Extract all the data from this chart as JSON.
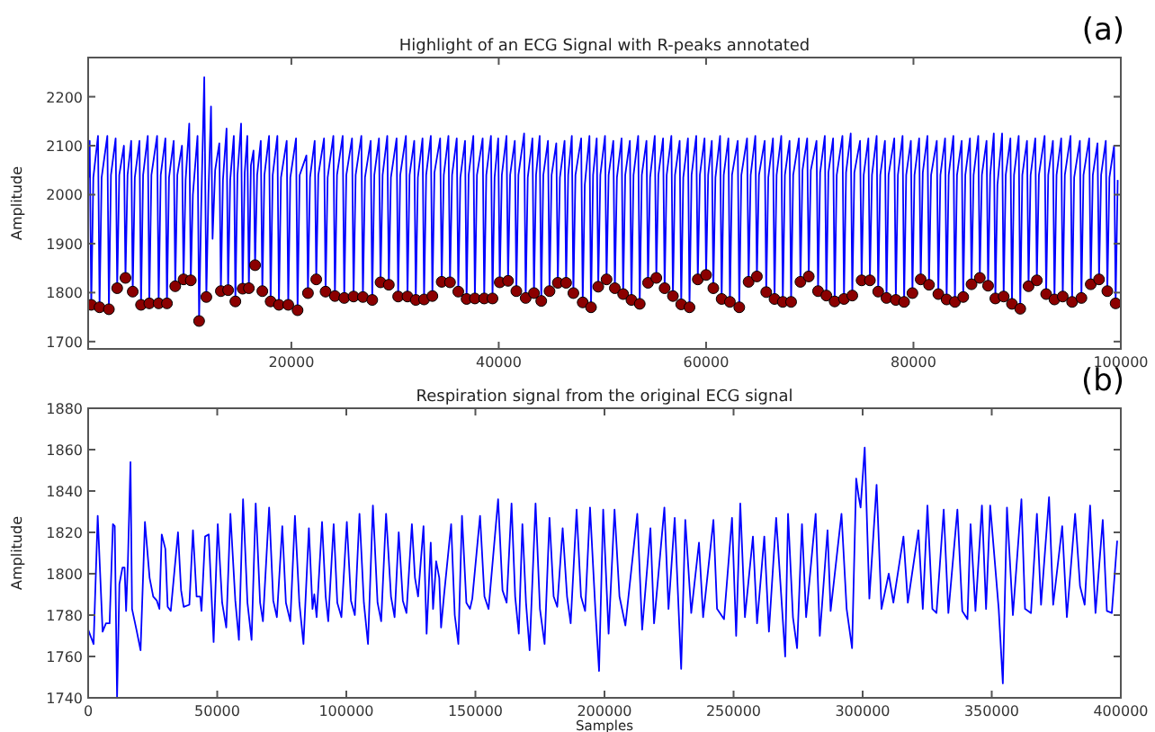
{
  "chart_data": [
    {
      "type": "line",
      "title": "Highlight of an ECG Signal with R-peaks annotated",
      "ylabel": "Amplitude",
      "annotations": [
        "(a)"
      ],
      "xlim": [
        400,
        100000
      ],
      "xticks": [
        20000,
        40000,
        60000,
        80000,
        100000
      ],
      "ylim": [
        1685,
        2280
      ],
      "yticks": [
        1700,
        1800,
        1900,
        2000,
        2100,
        2200
      ],
      "series": [
        {
          "color": "#0000ff",
          "line_style": "solid",
          "x": [
            450,
            550,
            700,
            900,
            1350,
            1500,
            1700,
            2250,
            2400,
            2600,
            3050,
            3200,
            3400,
            3850,
            4000,
            4200,
            4550,
            4700,
            4900,
            5350,
            5500,
            5700,
            6150,
            6300,
            6500,
            7050,
            7200,
            7400,
            7850,
            8000,
            8200,
            8650,
            8800,
            9000,
            9450,
            9600,
            9800,
            10150,
            10300,
            10500,
            10950,
            11100,
            11300,
            11600,
            11800,
            12000,
            12250,
            12400,
            12650,
            13050,
            13200,
            13400,
            13750,
            13900,
            14100,
            14450,
            14600,
            14800,
            15150,
            15300,
            15500,
            15750,
            15900,
            16100,
            16350,
            16500,
            16700,
            17050,
            17200,
            17400,
            17850,
            18000,
            18200,
            18650,
            18800,
            19000,
            19550,
            19700,
            19900,
            20450,
            20600,
            20800,
            21450,
            21600,
            21800,
            22250,
            22400,
            22600,
            23150,
            23300,
            23500,
            24050,
            24200,
            24400,
            24950,
            25100,
            25300,
            25850,
            26000,
            26200,
            26750,
            26900,
            27100,
            27650,
            27800,
            28000,
            28450,
            28600,
            28800,
            29250,
            29400,
            29600,
            30150,
            30300,
            30500,
            31050,
            31200,
            31400,
            31850,
            32000,
            32200,
            32650,
            32800,
            33000,
            33450,
            33600,
            33800,
            34350,
            34500,
            34700,
            35150,
            35300,
            35500,
            35950,
            36100,
            36300,
            36750,
            36900,
            37100,
            37550,
            37700,
            37900,
            38450,
            38600,
            38800,
            39250,
            39400,
            39600,
            39950,
            40100,
            40300,
            40750,
            40900,
            41100,
            41550,
            41700,
            41900,
            42450,
            42600,
            42800,
            43250,
            43400,
            43600,
            43950,
            44100,
            44300,
            44750,
            44900,
            45100,
            45550,
            45700,
            45900,
            46350,
            46500,
            46700,
            47050,
            47200,
            47400,
            47950,
            48100,
            48300,
            48750,
            48900,
            49100,
            49450,
            49600,
            49800,
            50250,
            50400,
            50600,
            51050,
            51200,
            51400,
            51850,
            52000,
            52200,
            52650,
            52800,
            53000,
            53450,
            53600,
            53800,
            54250,
            54400,
            54600,
            55050,
            55200,
            55400,
            55850,
            56000,
            56200,
            56650,
            56800,
            57000,
            57450,
            57600,
            57800,
            58250,
            58400,
            58600,
            59050,
            59200,
            59400,
            59850,
            60000,
            60200,
            60550,
            60700,
            60900,
            61350,
            61500,
            61700,
            62150,
            62300,
            62500,
            63050,
            63200,
            63400,
            63950,
            64100,
            64300,
            64750,
            64900,
            65100,
            65650,
            65800,
            66000,
            66450,
            66600,
            66800,
            67250,
            67400,
            67600,
            68050,
            68200,
            68400,
            68950,
            69100,
            69300,
            69750,
            69900,
            70100,
            70650,
            70800,
            71000,
            71450,
            71600,
            71800,
            72250,
            72400,
            72600,
            73150,
            73300,
            73500,
            73950,
            74100,
            74300,
            74850,
            75000,
            75200,
            75650,
            75800,
            76000,
            76450,
            76600,
            76800,
            77250,
            77400,
            77600,
            78150,
            78300,
            78500,
            78950,
            79100,
            79300,
            79750,
            79900,
            80100,
            80550,
            80700,
            80900,
            81350,
            81500,
            81700,
            82250,
            82400,
            82600,
            83050,
            83200,
            83400,
            83850,
            84000,
            84200,
            84650,
            84800,
            85000,
            85450,
            85600,
            85800,
            86250,
            86400,
            86600,
            87050,
            87200,
            87400,
            87750,
            87900,
            88100,
            88550,
            88700,
            88900,
            89350,
            89500,
            89700,
            90150,
            90300,
            90500,
            90950,
            91100,
            91300,
            91750,
            91900,
            92100,
            92650,
            92800,
            93000,
            93450,
            93600,
            93800,
            94250,
            94400,
            94600,
            95150,
            95300,
            95500,
            96050,
            96200,
            96400,
            96950,
            97100,
            97300,
            97750,
            97900,
            98100,
            98550,
            98700,
            98900,
            99350,
            99500,
            99700
          ],
          "values": [
            2035,
            2110,
            1775,
            2035,
            2120,
            1770,
            2035,
            2120,
            1766,
            2040,
            2115,
            1809,
            2040,
            2100,
            1830,
            2040,
            2110,
            1802,
            2035,
            2110,
            1775,
            2040,
            2120,
            1778,
            2040,
            2120,
            1778,
            2040,
            2115,
            1778,
            2035,
            2110,
            1813,
            2040,
            2100,
            1827,
            2030,
            2145,
            1825,
            2000,
            2120,
            1742,
            1970,
            2240,
            1791,
            2000,
            2180,
            1910,
            2050,
            2105,
            1803,
            2030,
            2135,
            1805,
            2030,
            2120,
            1782,
            2040,
            2145,
            1808,
            2045,
            2120,
            1809,
            2060,
            2090,
            1856,
            2040,
            2110,
            1803,
            2040,
            2120,
            1782,
            2040,
            2120,
            1775,
            2035,
            2110,
            1775,
            2035,
            2115,
            1764,
            2040,
            2080,
            1799,
            2035,
            2110,
            1827,
            2040,
            2115,
            1802,
            2035,
            2120,
            1793,
            2040,
            2120,
            1789,
            2040,
            2115,
            1792,
            2040,
            2120,
            1791,
            2035,
            2110,
            1785,
            2040,
            2115,
            1821,
            2040,
            2120,
            1816,
            2035,
            2115,
            1792,
            2040,
            2120,
            1792,
            2040,
            2110,
            1785,
            2035,
            2115,
            1786,
            2040,
            2120,
            1793,
            2045,
            2115,
            1822,
            2040,
            2120,
            1821,
            2040,
            2115,
            1802,
            2035,
            2110,
            1787,
            2040,
            2120,
            1788,
            2040,
            2115,
            1788,
            2040,
            2120,
            1788,
            2035,
            2115,
            1821,
            2040,
            2120,
            1824,
            2040,
            2110,
            1803,
            2040,
            2125,
            1789,
            2035,
            2115,
            1799,
            2040,
            2120,
            1783,
            2040,
            2110,
            1803,
            2040,
            2105,
            1820,
            2035,
            2110,
            1820,
            2040,
            2120,
            1799,
            2040,
            2115,
            1780,
            2020,
            2120,
            1770,
            2040,
            2115,
            1812,
            2040,
            2120,
            1827,
            2040,
            2110,
            1809,
            2035,
            2115,
            1797,
            2040,
            2110,
            1785,
            2040,
            2120,
            1777,
            2040,
            2110,
            1820,
            2035,
            2120,
            1830,
            2040,
            2115,
            1809,
            2040,
            2120,
            1793,
            2040,
            2110,
            1776,
            2035,
            2115,
            1770,
            2040,
            2120,
            1827,
            2040,
            2115,
            1836,
            2040,
            2110,
            1809,
            2035,
            2120,
            1787,
            2040,
            2115,
            1781,
            2040,
            2110,
            1770,
            2040,
            2115,
            1822,
            2040,
            2120,
            1833,
            2040,
            2110,
            1801,
            2035,
            2115,
            1787,
            2040,
            2120,
            1781,
            2040,
            2110,
            1781,
            2040,
            2115,
            1822,
            2050,
            2115,
            1833,
            2050,
            2110,
            1803,
            2045,
            2120,
            1794,
            2045,
            2115,
            1782,
            2040,
            2120,
            1787,
            2045,
            2125,
            1794,
            2045,
            2110,
            1825,
            2040,
            2115,
            1825,
            2040,
            2120,
            1802,
            2040,
            2110,
            1789,
            2040,
            2115,
            1785,
            2040,
            2120,
            1781,
            2040,
            2110,
            1799,
            2040,
            2115,
            1827,
            2045,
            2120,
            1816,
            2040,
            2110,
            1797,
            2040,
            2115,
            1786,
            2040,
            2120,
            1781,
            2040,
            2110,
            1791,
            2040,
            2115,
            1817,
            2040,
            2120,
            1830,
            2040,
            2110,
            1814,
            2040,
            2125,
            1788,
            2020,
            2125,
            1792,
            2040,
            2115,
            1777,
            2040,
            2120,
            1767,
            2040,
            2110,
            1813,
            2040,
            2115,
            1825,
            2040,
            2120,
            1797,
            2040,
            2110,
            1786,
            2040,
            2115,
            1792,
            2040,
            2120,
            1781,
            2035,
            2110,
            1789,
            2040,
            2115,
            1817,
            2040,
            2105,
            1827,
            2040,
            2110,
            1803,
            2035,
            2100,
            1778,
            2030
          ]
        },
        {
          "type": "scatter",
          "color": "#8b0000",
          "marker": "circle",
          "x": [
            700,
            1500,
            2400,
            3200,
            4000,
            4700,
            5500,
            6300,
            7200,
            8000,
            8800,
            9600,
            10300,
            11100,
            11800,
            13200,
            13900,
            14600,
            15300,
            15900,
            16500,
            17200,
            18000,
            18800,
            19700,
            20600,
            21600,
            22400,
            23300,
            24200,
            25100,
            26000,
            26900,
            27800,
            28600,
            29400,
            30300,
            31200,
            32000,
            32800,
            33600,
            34500,
            35300,
            36100,
            36900,
            37700,
            38600,
            39400,
            40100,
            40900,
            41700,
            42600,
            43400,
            44100,
            44900,
            45700,
            46500,
            47200,
            48100,
            48900,
            49600,
            50400,
            51200,
            52000,
            52800,
            53600,
            54400,
            55200,
            56000,
            56800,
            57600,
            58400,
            59200,
            60000,
            60700,
            61500,
            62300,
            63200,
            64100,
            64900,
            65800,
            66600,
            67400,
            68200,
            69100,
            69900,
            70800,
            71600,
            72400,
            73300,
            74100,
            75000,
            75800,
            76600,
            77400,
            78300,
            79100,
            79900,
            80700,
            81500,
            82400,
            83200,
            84000,
            84800,
            85600,
            86400,
            87200,
            87900,
            88700,
            89500,
            90300,
            91100,
            91900,
            92800,
            93600,
            94400,
            95300,
            96200,
            97100,
            97900,
            98700,
            99500
          ],
          "values": [
            1775,
            1770,
            1766,
            1809,
            1830,
            1802,
            1775,
            1778,
            1778,
            1778,
            1813,
            1827,
            1825,
            1742,
            1791,
            1803,
            1805,
            1782,
            1808,
            1809,
            1856,
            1803,
            1782,
            1775,
            1775,
            1764,
            1799,
            1827,
            1802,
            1793,
            1789,
            1792,
            1791,
            1785,
            1821,
            1816,
            1792,
            1792,
            1785,
            1786,
            1793,
            1822,
            1821,
            1802,
            1787,
            1788,
            1788,
            1788,
            1821,
            1824,
            1803,
            1789,
            1799,
            1783,
            1803,
            1820,
            1820,
            1799,
            1780,
            1770,
            1812,
            1827,
            1809,
            1797,
            1785,
            1777,
            1820,
            1830,
            1809,
            1793,
            1776,
            1770,
            1827,
            1836,
            1809,
            1787,
            1781,
            1770,
            1822,
            1833,
            1801,
            1787,
            1781,
            1781,
            1822,
            1833,
            1803,
            1794,
            1782,
            1787,
            1794,
            1825,
            1825,
            1802,
            1789,
            1785,
            1781,
            1799,
            1827,
            1816,
            1797,
            1786,
            1781,
            1791,
            1817,
            1830,
            1814,
            1788,
            1792,
            1777,
            1767,
            1813,
            1825,
            1797,
            1786,
            1792,
            1781,
            1789,
            1817,
            1827,
            1803,
            1778
          ]
        }
      ]
    },
    {
      "type": "line",
      "title": "Respiration signal from the original ECG signal",
      "xlabel": "Samples",
      "ylabel": "Amplitude",
      "annotations": [
        "(b)"
      ],
      "xlim": [
        0,
        400000
      ],
      "xticks": [
        0,
        50000,
        100000,
        150000,
        200000,
        250000,
        300000,
        350000,
        400000
      ],
      "ylim": [
        1740,
        1880
      ],
      "yticks": [
        1740,
        1760,
        1780,
        1800,
        1820,
        1840,
        1860,
        1880
      ],
      "series": [
        {
          "color": "#0000ff",
          "line_style": "solid",
          "x": [
            0,
            2100,
            3700,
            5600,
            6900,
            8300,
            9600,
            10300,
            11200,
            12100,
            13300,
            14100,
            14700,
            15400,
            16400,
            17000,
            18700,
            20300,
            22000,
            23800,
            25200,
            26600,
            27600,
            28500,
            29900,
            30800,
            32000,
            34800,
            36000,
            37000,
            39200,
            40600,
            42000,
            43400,
            43900,
            45300,
            46700,
            48600,
            50200,
            51900,
            53500,
            55100,
            57000,
            58400,
            60000,
            61700,
            63300,
            64900,
            66600,
            67700,
            70100,
            71700,
            73100,
            75200,
            76600,
            78300,
            80100,
            81800,
            83400,
            85500,
            86900,
            87600,
            88500,
            90600,
            92000,
            93000,
            95100,
            96500,
            98100,
            100200,
            101800,
            103300,
            105100,
            106800,
            108400,
            110300,
            112100,
            113500,
            115400,
            117300,
            118700,
            120300,
            121900,
            123300,
            125400,
            126600,
            127800,
            129900,
            131100,
            132700,
            133600,
            134300,
            134800,
            136000,
            136700,
            137800,
            140600,
            142000,
            143400,
            144800,
            146500,
            147900,
            148800,
            151800,
            153500,
            155100,
            158800,
            160500,
            162100,
            164000,
            165400,
            166800,
            168200,
            169600,
            171000,
            173300,
            175000,
            176800,
            178700,
            180300,
            181700,
            183800,
            185500,
            186900,
            189200,
            190900,
            192500,
            194400,
            196500,
            197900,
            199500,
            201600,
            203900,
            205800,
            208100,
            212700,
            214600,
            217800,
            219200,
            223200,
            224800,
            227200,
            229700,
            231300,
            233600,
            236600,
            238200,
            242200,
            243600,
            246300,
            249400,
            251000,
            252600,
            254400,
            257500,
            259100,
            261900,
            263700,
            266500,
            270000,
            271100,
            273000,
            274600,
            276500,
            278100,
            281800,
            283400,
            286400,
            287600,
            291800,
            293800,
            295900,
            297500,
            298500,
            299200,
            300800,
            302600,
            305400,
            307300,
            310100,
            311900,
            315800,
            317500,
            321600,
            323300,
            325100,
            327000,
            328600,
            331400,
            333200,
            336700,
            338600,
            340600,
            341800,
            343700,
            346200,
            347800,
            349400,
            352700,
            354300,
            355900,
            358200,
            361500,
            362900,
            365200,
            367500,
            369100,
            372200,
            373800,
            377300,
            379100,
            382300,
            384200,
            386000,
            388100,
            390200,
            393000,
            394600,
            396500,
            398600
          ],
          "values": [
            1773,
            1766,
            1828,
            1772,
            1776,
            1776,
            1824,
            1823,
            1740,
            1795,
            1803,
            1803,
            1782,
            1806,
            1854,
            1783,
            1773,
            1763,
            1825,
            1798,
            1789,
            1787,
            1783,
            1819,
            1812,
            1784,
            1782,
            1820,
            1792,
            1784,
            1785,
            1821,
            1789,
            1789,
            1782,
            1818,
            1819,
            1767,
            1824,
            1786,
            1774,
            1829,
            1787,
            1768,
            1836,
            1786,
            1768,
            1834,
            1786,
            1777,
            1832,
            1787,
            1779,
            1823,
            1786,
            1777,
            1828,
            1786,
            1766,
            1822,
            1783,
            1790,
            1779,
            1825,
            1789,
            1777,
            1824,
            1786,
            1779,
            1825,
            1787,
            1780,
            1829,
            1786,
            1766,
            1833,
            1786,
            1777,
            1829,
            1789,
            1779,
            1820,
            1787,
            1781,
            1824,
            1798,
            1789,
            1823,
            1771,
            1815,
            1783,
            1796,
            1806,
            1798,
            1774,
            1789,
            1824,
            1780,
            1766,
            1828,
            1786,
            1783,
            1788,
            1828,
            1789,
            1783,
            1836,
            1792,
            1786,
            1834,
            1789,
            1771,
            1824,
            1786,
            1763,
            1834,
            1783,
            1766,
            1827,
            1789,
            1784,
            1822,
            1789,
            1776,
            1831,
            1789,
            1782,
            1832,
            1782,
            1753,
            1831,
            1771,
            1831,
            1789,
            1775,
            1829,
            1773,
            1822,
            1776,
            1832,
            1783,
            1827,
            1754,
            1826,
            1781,
            1815,
            1779,
            1826,
            1783,
            1778,
            1827,
            1770,
            1834,
            1779,
            1818,
            1776,
            1818,
            1772,
            1827,
            1760,
            1829,
            1779,
            1764,
            1824,
            1779,
            1829,
            1770,
            1821,
            1782,
            1829,
            1783,
            1764,
            1846,
            1837,
            1832,
            1861,
            1788,
            1843,
            1783,
            1800,
            1786,
            1818,
            1786,
            1821,
            1783,
            1833,
            1783,
            1781,
            1831,
            1781,
            1831,
            1782,
            1778,
            1824,
            1782,
            1833,
            1783,
            1833,
            1783,
            1747,
            1832,
            1780,
            1836,
            1783,
            1781,
            1829,
            1785,
            1837,
            1785,
            1823,
            1779,
            1829,
            1794,
            1785,
            1833,
            1781,
            1826,
            1782,
            1781,
            1816
          ]
        }
      ]
    }
  ]
}
